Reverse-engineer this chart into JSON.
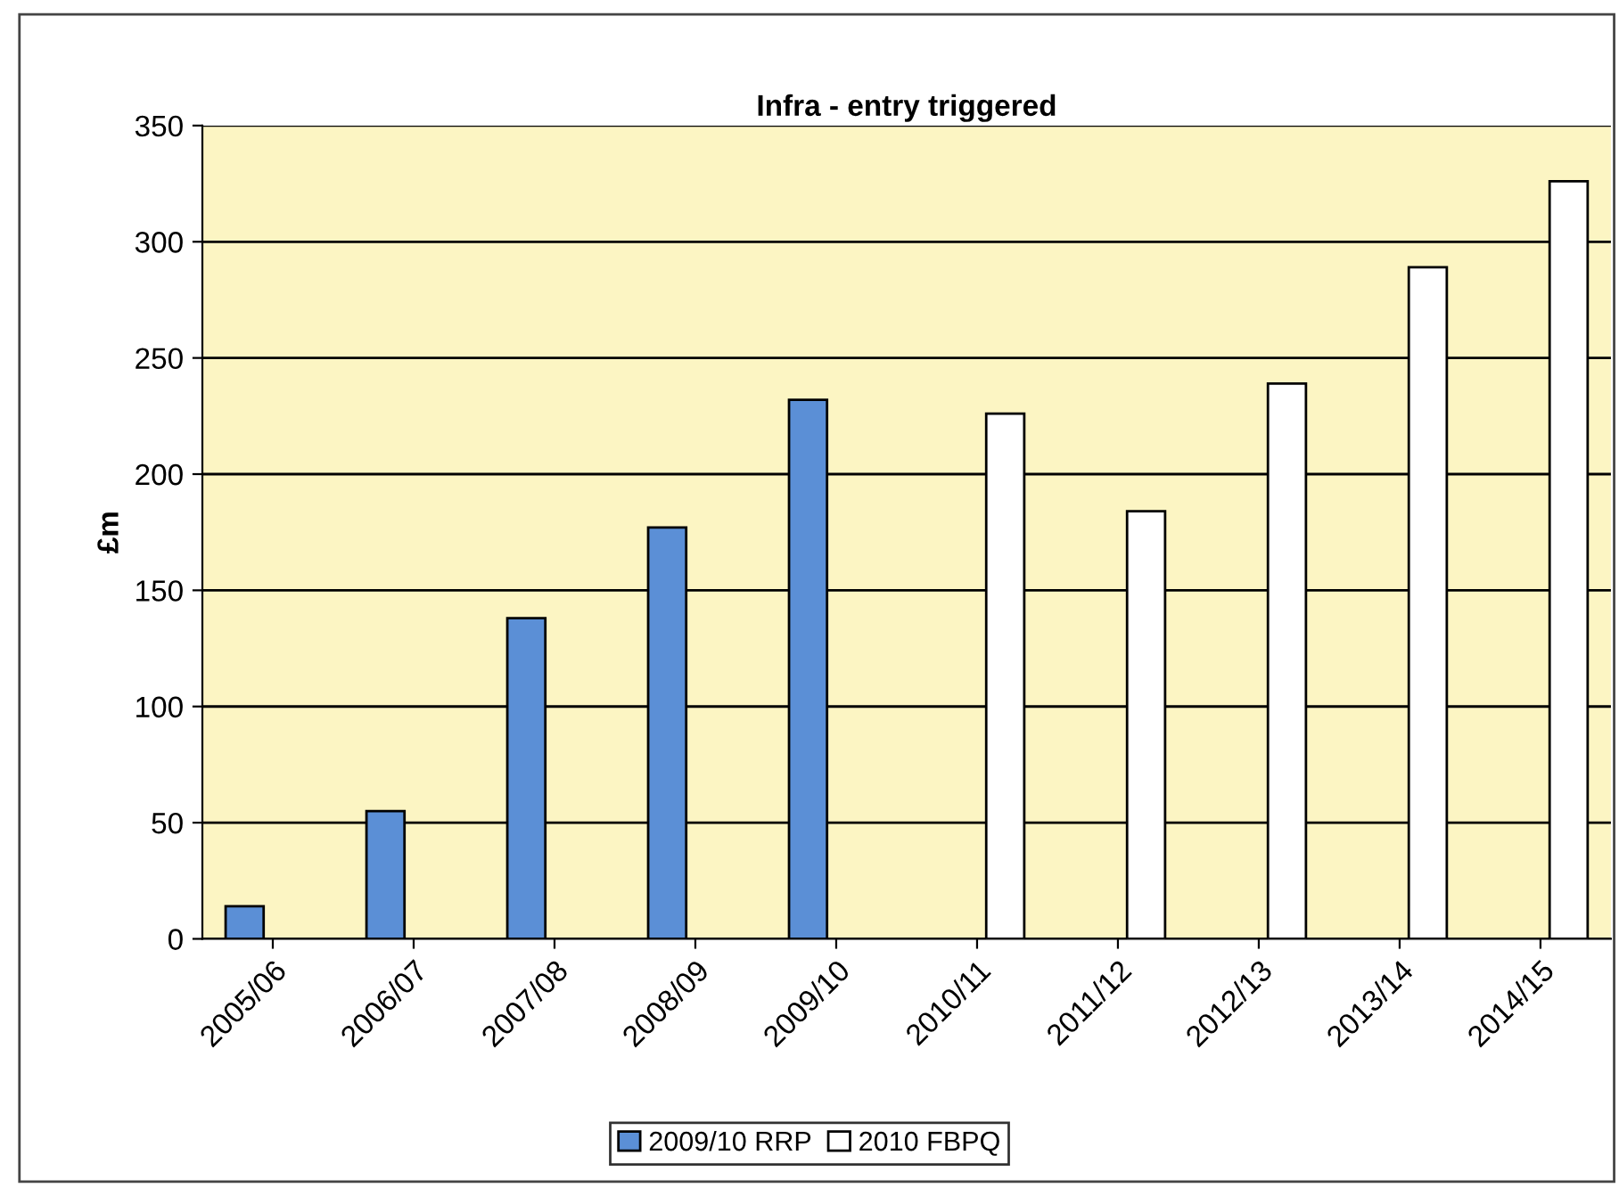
{
  "chart_data": {
    "type": "bar",
    "title": "Infra - entry triggered",
    "ylabel": "£m",
    "categories": [
      "2005/06",
      "2006/07",
      "2007/08",
      "2008/09",
      "2009/10",
      "2010/11",
      "2011/12",
      "2012/13",
      "2013/14",
      "2014/15"
    ],
    "series": [
      {
        "name": "2009/10 RRP",
        "color": "#5b8fd6",
        "values": [
          14,
          55,
          138,
          177,
          232,
          null,
          null,
          null,
          null,
          null
        ]
      },
      {
        "name": "2010 FBPQ",
        "color": "#ffffff",
        "values": [
          null,
          null,
          null,
          null,
          null,
          226,
          184,
          239,
          289,
          326
        ]
      }
    ],
    "ylim": [
      0,
      350
    ],
    "yticks": [
      0,
      50,
      100,
      150,
      200,
      250,
      300,
      350
    ],
    "grid": "y",
    "legend": "bottom"
  }
}
